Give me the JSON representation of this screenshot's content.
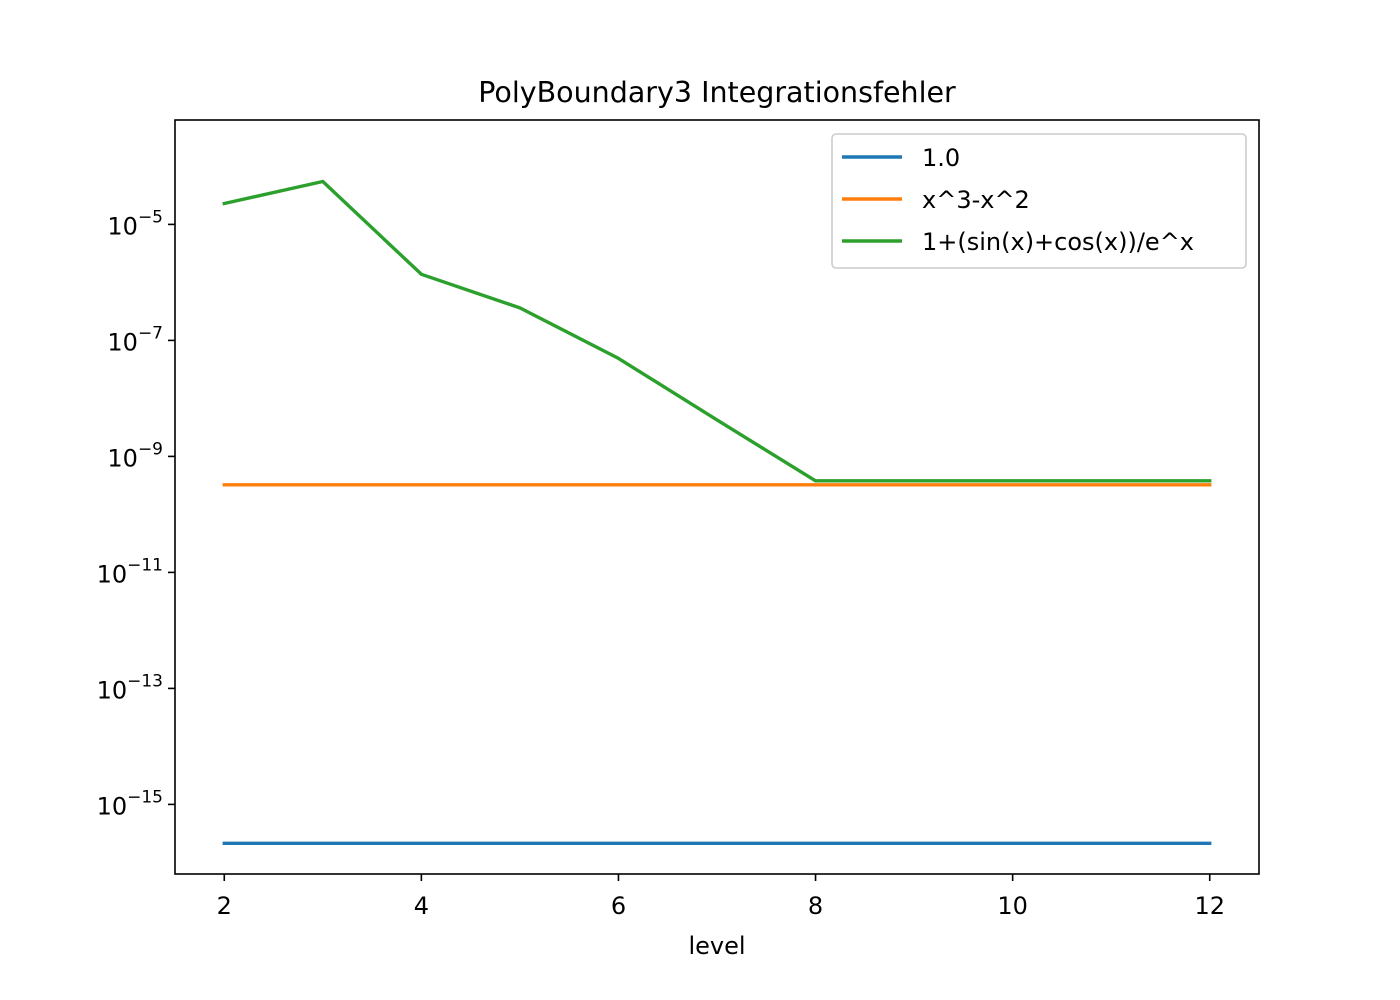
{
  "chart_data": {
    "type": "line",
    "title": "PolyBoundary3 Integrationsfehler",
    "xlabel": "level",
    "ylabel": "",
    "yscale": "log",
    "xlim": [
      1.5,
      12.5
    ],
    "ylim_log10": [
      -16.2,
      -3.2
    ],
    "x": [
      2,
      3,
      4,
      5,
      6,
      7,
      8,
      9,
      10,
      11,
      12
    ],
    "xticks": [
      2,
      4,
      6,
      8,
      10,
      12
    ],
    "xtick_labels": [
      "2",
      "4",
      "6",
      "8",
      "10",
      "12"
    ],
    "yticks_log10": [
      -5,
      -7,
      -9,
      -11,
      -13,
      -15
    ],
    "ytick_base": "10",
    "ytick_exponents": [
      "−5",
      "−7",
      "−9",
      "−11",
      "−13",
      "−15"
    ],
    "legend_position": "upper right",
    "series": [
      {
        "name": "1.0",
        "color": "#1f77b4",
        "log10_values": [
          -15.67,
          -15.67,
          -15.67,
          -15.67,
          -15.67,
          -15.67,
          -15.67,
          -15.67,
          -15.67,
          -15.67,
          -15.67
        ]
      },
      {
        "name": "x^3-x^2",
        "color": "#ff7f0e",
        "log10_values": [
          -9.49,
          -9.49,
          -9.49,
          -9.49,
          -9.49,
          -9.49,
          -9.49,
          -9.49,
          -9.49,
          -9.49,
          -9.49
        ]
      },
      {
        "name": "1+(sin(x)+cos(x))/e^x",
        "color": "#2ca02c",
        "log10_values": [
          -4.64,
          -4.26,
          -5.86,
          -6.44,
          -7.31,
          -8.37,
          -9.42,
          -9.42,
          -9.42,
          -9.42,
          -9.42
        ]
      }
    ]
  }
}
